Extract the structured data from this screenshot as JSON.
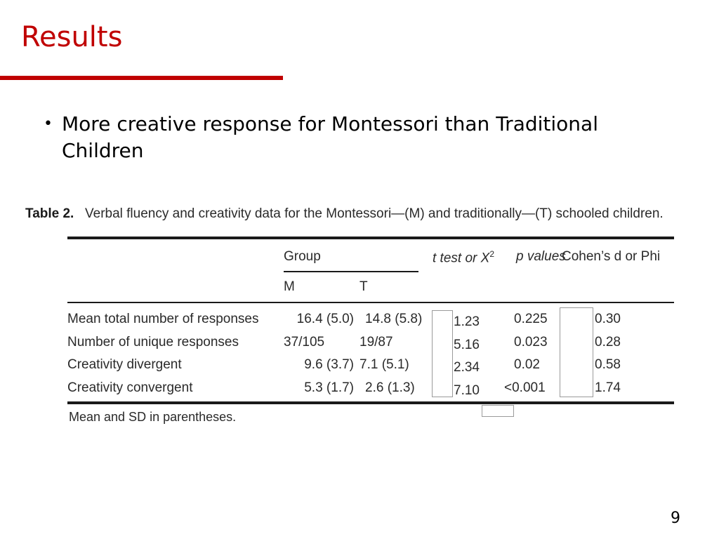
{
  "slide": {
    "title": "Results",
    "bullet_glyph": "•",
    "bullet": "More creative response for Montessori than Traditional Children",
    "page_number": "9"
  },
  "table": {
    "label": "Table 2.",
    "caption": "Verbal fluency and creativity data for the Montessori—(M) and traditionally—(T) schooled children.",
    "headers": {
      "group": "Group",
      "m": "M",
      "t": "T",
      "test": "t test or X",
      "test_sup": "2",
      "p": "p values",
      "effect": "Cohen’s d or Phi"
    },
    "rows": [
      {
        "label": "Mean total number of responses",
        "m": "16.4 (5.0)",
        "t": "14.8 (5.8)",
        "test": "1.23",
        "p": "0.225",
        "effect": "0.30"
      },
      {
        "label": "Number of unique responses",
        "m": "37/105",
        "t": "19/87",
        "test": "5.16",
        "p": "0.023",
        "effect": "0.28"
      },
      {
        "label": "Creativity divergent",
        "m": "9.6 (3.7)",
        "t": "7.1 (5.1)",
        "test": "2.34",
        "p": "0.02",
        "effect": "0.58"
      },
      {
        "label": "Creativity convergent",
        "m": "5.3 (1.7)",
        "t": "2.6 (1.3)",
        "test": "7.10",
        "p": "<0.001",
        "effect": "1.74"
      }
    ],
    "footnote": "Mean and SD in parentheses."
  }
}
